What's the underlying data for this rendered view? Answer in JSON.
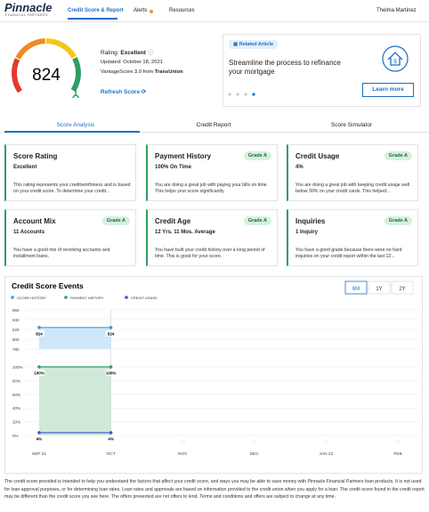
{
  "header": {
    "logo": "Pinnacle",
    "logo_sub": "FINANCIAL PARTNERS",
    "nav": [
      "Credit Score & Report",
      "Alerts",
      "Resources"
    ],
    "user": "Thelma Martinez"
  },
  "score": {
    "value": 824,
    "min": 300,
    "max": 850,
    "rating_label": "Rating:",
    "rating": "Excellent",
    "updated": "Updated: October 18, 2021",
    "source": "VantageScore 3.0 from",
    "bureau": "TransUnion",
    "refresh": "Refresh Score"
  },
  "article": {
    "tag": "Related Article",
    "text": "Streamline the process to refinance your mortgage",
    "button": "Learn more"
  },
  "tabs": [
    "Score Analysis",
    "Credit Report",
    "Score Simulator"
  ],
  "cards": [
    {
      "title": "Score Rating",
      "value": "Excellent",
      "text": "This rating represents your creditworthiness and is based on your credit score. To determine your credit..."
    },
    {
      "title": "Payment History",
      "badge": "Grade A",
      "value": "100% On Time",
      "text": "You are doing a great job with paying your bills on time. This helps your score significantly."
    },
    {
      "title": "Credit Usage",
      "badge": "Grade A",
      "value": "4%",
      "text": "You are doing a great job with keeping credit usage well below 30% on your credit cards. This helped..."
    },
    {
      "title": "Account Mix",
      "badge": "Grade A",
      "value": "11 Accounts",
      "text": "You have a good mix of revolving accounts and installment loans."
    },
    {
      "title": "Credit Age",
      "badge": "Grade A",
      "value": "12 Yrs. 11 Mos. Average",
      "text": "You have built your credit history over a long period of time. This is good for your score."
    },
    {
      "title": "Inquiries",
      "badge": "Grade A",
      "value": "1 Inquiry",
      "text": "You have a good grade because there were no hard inquiries on your credit report within the last 12..."
    }
  ],
  "chart_data": {
    "type": "line",
    "title": "Credit Score Events",
    "ranges": [
      "6M",
      "1Y",
      "2Y"
    ],
    "categories": [
      "SEP 21",
      "OCT",
      "NOV",
      "DEC",
      "JAN 22",
      "FEB"
    ],
    "series": [
      {
        "name": "SCORE HISTORY",
        "color": "#3b9be0",
        "values": [
          824,
          824,
          null,
          null,
          null,
          null
        ]
      },
      {
        "name": "PAYMENT HISTORY",
        "color": "#2e9e63",
        "axis": "y2",
        "values": [
          100,
          100,
          null,
          null,
          null,
          null
        ],
        "value_labels": [
          "100%",
          "100%",
          null,
          null,
          null,
          null
        ]
      },
      {
        "name": "CREDIT USAGE",
        "color": "#3f51d8",
        "axis": "y2",
        "values": [
          4,
          4,
          null,
          null,
          null,
          null
        ],
        "value_labels": [
          "4%",
          "4%",
          null,
          null,
          null,
          null
        ]
      }
    ],
    "ylim": [
      780,
      860
    ],
    "yticks": [
      780,
      800,
      820,
      840,
      860
    ],
    "y2lim": [
      0,
      100
    ],
    "y2ticks": [
      {
        "value": 0,
        "label": "0%"
      },
      {
        "value": 20,
        "label": "20%"
      },
      {
        "value": 40,
        "label": "40%"
      },
      {
        "value": 60,
        "label": "60%"
      },
      {
        "value": 80,
        "label": "80%"
      },
      {
        "value": 100,
        "label": "100%"
      }
    ]
  },
  "footer": "The credit score provided is intended to help you understand the factors that affect your credit score, and ways you may be able to save money with Pinnacle Financial Partners loan products. It is not used for loan approval purposes, or for determining loan rates. Loan rates and approvals are based on information provided to the credit union when you apply for a loan. The credit score found in the credit report may be different than the credit score you see here. The offers presented are not offers to lend. Terms and conditions and offers are subject to change at any time."
}
